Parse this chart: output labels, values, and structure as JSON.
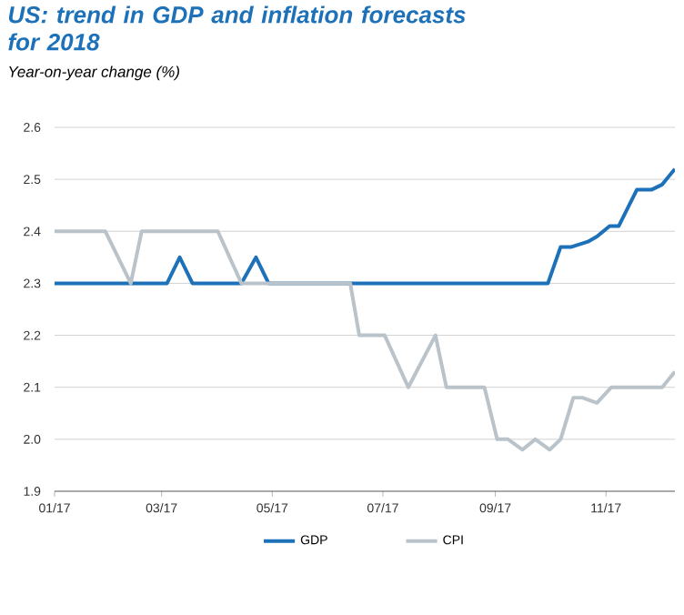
{
  "chart_data": {
    "type": "line",
    "title": "US: trend in GDP and inflation forecasts for 2018",
    "ylabel": "Year-on-year change (%)",
    "xlim": [
      "2017-01-01",
      "2017-12-09"
    ],
    "xticks": [
      {
        "value": "2017-01",
        "label": "01/17"
      },
      {
        "value": "2017-03",
        "label": "03/17"
      },
      {
        "value": "2017-05",
        "label": "05/17"
      },
      {
        "value": "2017-07",
        "label": "07/17"
      },
      {
        "value": "2017-09",
        "label": "09/17"
      },
      {
        "value": "2017-11",
        "label": "11/17"
      }
    ],
    "ylim": [
      1.9,
      2.6
    ],
    "yticks": [
      1.9,
      {
        "value": 2,
        "label": "2.0"
      },
      2.1,
      2.2,
      2.3,
      2.4,
      2.5,
      2.6
    ],
    "grid": "y",
    "legend": "bottom",
    "marker": "none",
    "line_style": "solid",
    "series": [
      {
        "name": "GDP",
        "color": "#1d71b8",
        "x": [
          "2017-01-01",
          "2017-03-04",
          "2017-03-11",
          "2017-03-18",
          "2017-04-14",
          "2017-04-22",
          "2017-04-29",
          "2017-09-30",
          "2017-10-07",
          "2017-10-13",
          "2017-10-22",
          "2017-10-27",
          "2017-11-03",
          "2017-11-08",
          "2017-11-18",
          "2017-11-26",
          "2017-12-02",
          "2017-12-09"
        ],
        "values": [
          2.3,
          2.3,
          2.35,
          2.3,
          2.3,
          2.35,
          2.3,
          2.3,
          2.37,
          2.37,
          2.38,
          2.39,
          2.41,
          2.41,
          2.48,
          2.48,
          2.49,
          2.52
        ]
      },
      {
        "name": "CPI",
        "color": "#b9c3c9",
        "x": [
          "2017-01-01",
          "2017-01-29",
          "2017-02-12",
          "2017-02-18",
          "2017-04-01",
          "2017-04-14",
          "2017-06-13",
          "2017-06-18",
          "2017-07-02",
          "2017-07-15",
          "2017-07-30",
          "2017-08-05",
          "2017-08-26",
          "2017-09-02",
          "2017-09-08",
          "2017-09-16",
          "2017-09-23",
          "2017-10-01",
          "2017-10-07",
          "2017-10-14",
          "2017-10-19",
          "2017-10-27",
          "2017-11-04",
          "2017-12-02",
          "2017-12-09"
        ],
        "values": [
          2.4,
          2.4,
          2.3,
          2.4,
          2.4,
          2.3,
          2.3,
          2.2,
          2.2,
          2.1,
          2.2,
          2.1,
          2.1,
          2.0,
          2.0,
          1.98,
          2.0,
          1.98,
          2.0,
          2.08,
          2.08,
          2.07,
          2.1,
          2.1,
          2.13
        ]
      }
    ]
  }
}
